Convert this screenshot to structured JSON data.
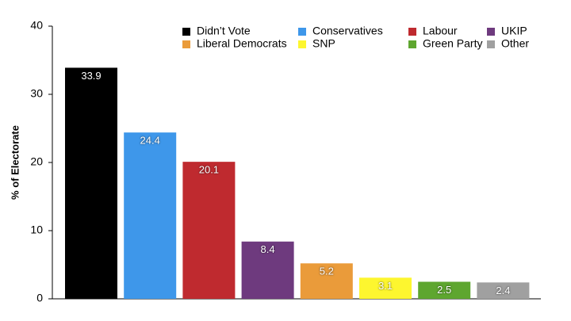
{
  "chart_data": {
    "type": "bar",
    "y_label": "% of Electorate",
    "series": [
      {
        "name": "Didn’t Vote",
        "color": "#000000",
        "values": [
          33.9
        ]
      },
      {
        "name": "Conservatives",
        "color": "#3e97ea",
        "values": [
          24.4
        ]
      },
      {
        "name": "Labour",
        "color": "#bf2a2f",
        "values": [
          20.1
        ]
      },
      {
        "name": "UKIP",
        "color": "#6e3a7e",
        "values": [
          8.4
        ]
      },
      {
        "name": "Liberal Democrats",
        "color": "#ea9b3a",
        "values": [
          5.2
        ]
      },
      {
        "name": "SNP",
        "color": "#fdf62f",
        "values": [
          3.1
        ]
      },
      {
        "name": "Green Party",
        "color": "#5ea62f",
        "values": [
          2.5
        ]
      },
      {
        "name": "Other",
        "color": "#a0a0a0",
        "values": [
          2.4
        ]
      }
    ],
    "ylim": [
      0,
      40
    ],
    "yticks": [
      0,
      10,
      20,
      30,
      40
    ]
  }
}
